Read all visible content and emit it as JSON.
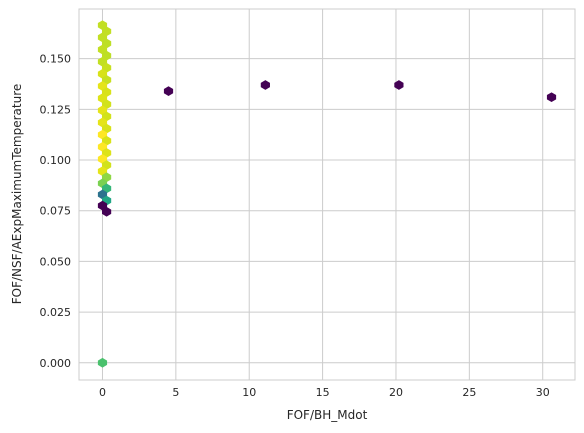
{
  "chart_data": {
    "type": "hexbin",
    "title": "",
    "xlabel": "FOF/BH_Mdot",
    "ylabel": "FOF/NSF/AExpMaximumTemperature",
    "xlim": [
      -1.6,
      32.2
    ],
    "ylim": [
      -0.0085,
      0.1745
    ],
    "xticks": [
      0,
      5,
      10,
      15,
      20,
      25,
      30
    ],
    "yticks": [
      0.0,
      0.025,
      0.05,
      0.075,
      0.1,
      0.125,
      0.15
    ],
    "xtick_labels": [
      "0",
      "5",
      "10",
      "15",
      "20",
      "25",
      "30"
    ],
    "ytick_labels": [
      "0.000",
      "0.025",
      "0.050",
      "0.075",
      "0.100",
      "0.125",
      "0.150"
    ],
    "grid": true,
    "colormap": "viridis",
    "background": "#ffffff",
    "grid_color": "#cccccc",
    "points": [
      {
        "x": 0.0,
        "y": 0.1665,
        "c": "#c2df23"
      },
      {
        "x": 0.28,
        "y": 0.1635,
        "c": "#c2df23"
      },
      {
        "x": 0.0,
        "y": 0.1605,
        "c": "#c2df23"
      },
      {
        "x": 0.28,
        "y": 0.1575,
        "c": "#bddf26"
      },
      {
        "x": 0.0,
        "y": 0.1545,
        "c": "#c2df23"
      },
      {
        "x": 0.28,
        "y": 0.1515,
        "c": "#bddf26"
      },
      {
        "x": 0.0,
        "y": 0.1485,
        "c": "#c2df23"
      },
      {
        "x": 0.28,
        "y": 0.1455,
        "c": "#c8e020"
      },
      {
        "x": 0.0,
        "y": 0.1425,
        "c": "#d8e219"
      },
      {
        "x": 0.28,
        "y": 0.1395,
        "c": "#c8e020"
      },
      {
        "x": 0.0,
        "y": 0.1365,
        "c": "#e5e419"
      },
      {
        "x": 0.28,
        "y": 0.1335,
        "c": "#d8e219"
      },
      {
        "x": 0.0,
        "y": 0.1305,
        "c": "#dde318"
      },
      {
        "x": 0.28,
        "y": 0.1275,
        "c": "#d2e21b"
      },
      {
        "x": 0.0,
        "y": 0.1245,
        "c": "#e5e419"
      },
      {
        "x": 0.28,
        "y": 0.1215,
        "c": "#d2e21b"
      },
      {
        "x": 0.0,
        "y": 0.1185,
        "c": "#e5e419"
      },
      {
        "x": 0.28,
        "y": 0.1155,
        "c": "#d8e219"
      },
      {
        "x": 0.0,
        "y": 0.1125,
        "c": "#fde725"
      },
      {
        "x": 0.28,
        "y": 0.1095,
        "c": "#d8e219"
      },
      {
        "x": 0.0,
        "y": 0.1065,
        "c": "#fde725"
      },
      {
        "x": 0.28,
        "y": 0.1035,
        "c": "#dde318"
      },
      {
        "x": 0.0,
        "y": 0.1005,
        "c": "#fde725"
      },
      {
        "x": 0.28,
        "y": 0.0975,
        "c": "#d2e21b"
      },
      {
        "x": 0.0,
        "y": 0.0945,
        "c": "#e5e419"
      },
      {
        "x": 0.28,
        "y": 0.0915,
        "c": "#8fd744"
      },
      {
        "x": 0.0,
        "y": 0.0885,
        "c": "#7ad151"
      },
      {
        "x": 0.28,
        "y": 0.086,
        "c": "#35b779"
      },
      {
        "x": 0.0,
        "y": 0.083,
        "c": "#2c728e"
      },
      {
        "x": 0.28,
        "y": 0.08,
        "c": "#21a685"
      },
      {
        "x": 0.0,
        "y": 0.0775,
        "c": "#440154"
      },
      {
        "x": 0.28,
        "y": 0.0745,
        "c": "#440154"
      },
      {
        "x": 0.0,
        "y": 0.0,
        "c": "#4ac16d"
      },
      {
        "x": 4.5,
        "y": 0.134,
        "c": "#440154"
      },
      {
        "x": 11.1,
        "y": 0.137,
        "c": "#440154"
      },
      {
        "x": 20.2,
        "y": 0.137,
        "c": "#440154"
      },
      {
        "x": 30.6,
        "y": 0.131,
        "c": "#440154"
      }
    ]
  }
}
